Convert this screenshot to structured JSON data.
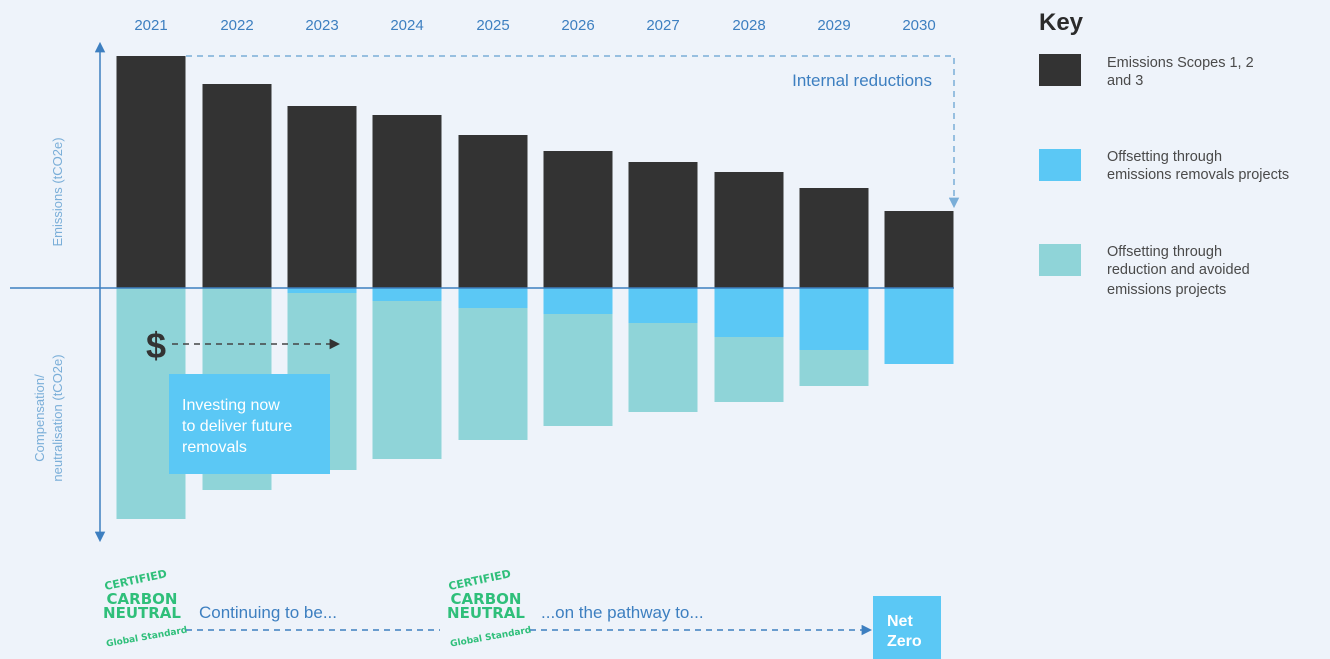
{
  "chart_data": {
    "type": "bar",
    "categories": [
      "2021",
      "2022",
      "2023",
      "2024",
      "2025",
      "2026",
      "2027",
      "2028",
      "2029",
      "2030"
    ],
    "series": [
      {
        "name": "Emissions Scopes 1, 2 and 3",
        "color": "#333333",
        "values": [
          232,
          204,
          182,
          173,
          153,
          137,
          126,
          116,
          100,
          77
        ]
      },
      {
        "name": "Offsetting through emissions removals projects",
        "color": "#5bc8f5",
        "values": [
          0,
          0,
          5,
          13,
          20,
          26,
          35,
          49,
          62,
          76
        ]
      },
      {
        "name": "Offsetting through reduction and avoided emissions projects",
        "color": "#8fd4d8",
        "values": [
          231,
          202,
          177,
          158,
          132,
          112,
          89,
          65,
          36,
          0
        ]
      }
    ],
    "ylabel_top": "Emissions (tCO2e)",
    "ylabel_bottom": [
      "Compensation/",
      "neutralisation (tCO2e)"
    ],
    "annotations": {
      "internal_reductions": "Internal reductions",
      "dollar": "$",
      "investing": [
        "Investing now",
        "to deliver future",
        "removals"
      ],
      "continuing": "Continuing to be...",
      "pathway": "...on the pathway to...",
      "net_zero": [
        "Net",
        "Zero"
      ]
    },
    "badge": {
      "top": "CERTIFIED",
      "middle1": "CARBON",
      "middle2": "NEUTRAL",
      "bottom": "Global Standard"
    },
    "key": {
      "title": "Key",
      "items": [
        {
          "color": "#333333",
          "lines": [
            "Emissions Scopes 1, 2",
            "and 3"
          ]
        },
        {
          "color": "#5bc8f5",
          "lines": [
            "Offsetting through",
            "emissions removals projects"
          ]
        },
        {
          "color": "#8fd4d8",
          "lines": [
            "Offsetting through",
            "reduction and avoided",
            "emissions projects"
          ]
        }
      ]
    },
    "legend_position": "right",
    "grid": false
  }
}
